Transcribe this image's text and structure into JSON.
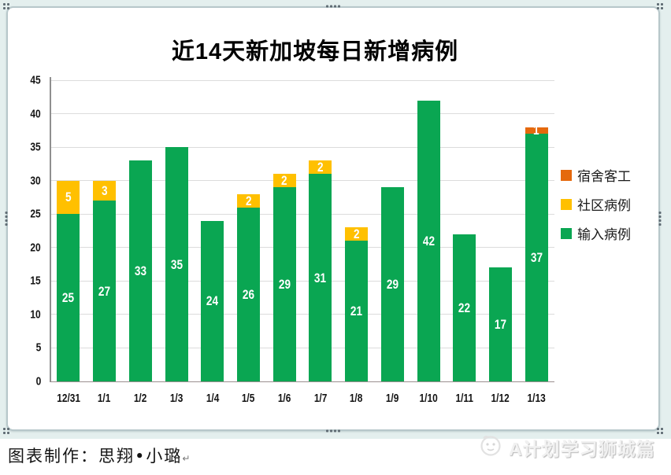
{
  "window": {
    "canvas_background": "#e4efee",
    "frame_border_color": "#b7c7ca"
  },
  "chart_data": {
    "type": "bar",
    "stacked": true,
    "title": "近14天新加坡每日新增病例",
    "categories": [
      "12/31",
      "1/1",
      "1/2",
      "1/3",
      "1/4",
      "1/5",
      "1/6",
      "1/7",
      "1/8",
      "1/9",
      "1/10",
      "1/11",
      "1/12",
      "1/13"
    ],
    "series": [
      {
        "name": "输入病例",
        "color": "#0aa652",
        "values": [
          25,
          27,
          33,
          35,
          24,
          26,
          29,
          31,
          21,
          29,
          42,
          22,
          17,
          37
        ]
      },
      {
        "name": "社区病例",
        "color": "#ffc000",
        "values": [
          5,
          3,
          0,
          0,
          0,
          2,
          2,
          2,
          2,
          0,
          0,
          0,
          0,
          0
        ]
      },
      {
        "name": "宿舍客工",
        "color": "#e5690d",
        "values": [
          0,
          0,
          0,
          0,
          0,
          0,
          0,
          0,
          0,
          0,
          0,
          0,
          0,
          1
        ]
      }
    ],
    "totals": [
      30,
      30,
      33,
      35,
      24,
      28,
      31,
      33,
      23,
      29,
      42,
      22,
      17,
      38
    ],
    "ylim": [
      0,
      45
    ],
    "ytick_step": 5,
    "grid": "horizontal",
    "legend": {
      "position": "right",
      "entries": [
        {
          "label": "宿舍客工",
          "color": "#e5690d"
        },
        {
          "label": "社区病例",
          "color": "#ffc000"
        },
        {
          "label": "输入病例",
          "color": "#0aa652"
        }
      ]
    },
    "value_label_color": "#ffffff"
  },
  "caption": {
    "text": "图表制作：思翔•小璐",
    "return_mark": "↵"
  },
  "watermark": {
    "text": "A计划学习狮城篇",
    "icon": "doodle-face-icon"
  }
}
